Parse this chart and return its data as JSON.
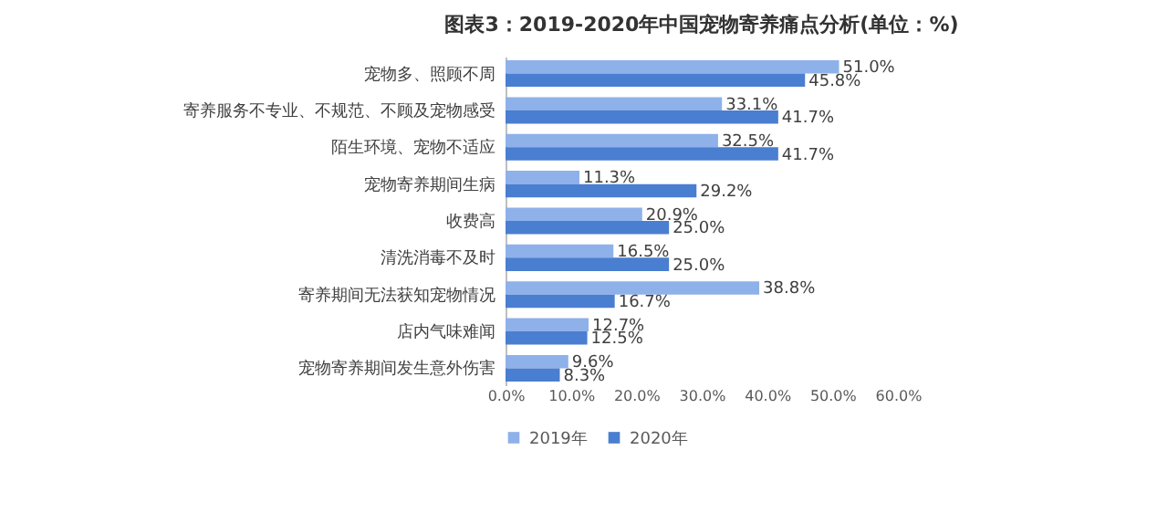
{
  "chart_data": {
    "type": "bar",
    "orientation": "horizontal",
    "title": "图表3：2019-2020年中国宠物寄养痛点分析(单位：%)",
    "categories": [
      "宠物多、照顾不周",
      "寄养服务不专业、不规范、不顾及宠物感受",
      "陌生环境、宠物不适应",
      "宠物寄养期间生病",
      "收费高",
      "清洗消毒不及时",
      "寄养期间无法获知宠物情况",
      "店内气味难闻",
      "宠物寄养期间发生意外伤害"
    ],
    "series": [
      {
        "name": "2019年",
        "color": "#8eb1ea",
        "values": [
          51.0,
          33.1,
          32.5,
          11.3,
          20.9,
          16.5,
          38.8,
          12.7,
          9.6
        ],
        "value_labels": [
          "51.0%",
          "33.1%",
          "32.5%",
          "11.3%",
          "20.9%",
          "16.5%",
          "38.8%",
          "12.7%",
          "9.6%"
        ]
      },
      {
        "name": "2020年",
        "color": "#4a7ed0",
        "values": [
          45.8,
          41.7,
          41.7,
          29.2,
          25.0,
          25.0,
          16.7,
          12.5,
          8.3
        ],
        "value_labels": [
          "45.8%",
          "41.7%",
          "41.7%",
          "29.2%",
          "25.0%",
          "25.0%",
          "16.7%",
          "12.5%",
          "8.3%"
        ]
      }
    ],
    "xlim": [
      0,
      60
    ],
    "xticks": [
      {
        "value": 0,
        "label": "0.0%"
      },
      {
        "value": 10,
        "label": "10.0%"
      },
      {
        "value": 20,
        "label": "20.0%"
      },
      {
        "value": 30,
        "label": "30.0%"
      },
      {
        "value": 40,
        "label": "40.0%"
      },
      {
        "value": 50,
        "label": "50.0%"
      },
      {
        "value": 60,
        "label": "60.0%"
      }
    ],
    "legend": "bottom",
    "grid": false
  }
}
